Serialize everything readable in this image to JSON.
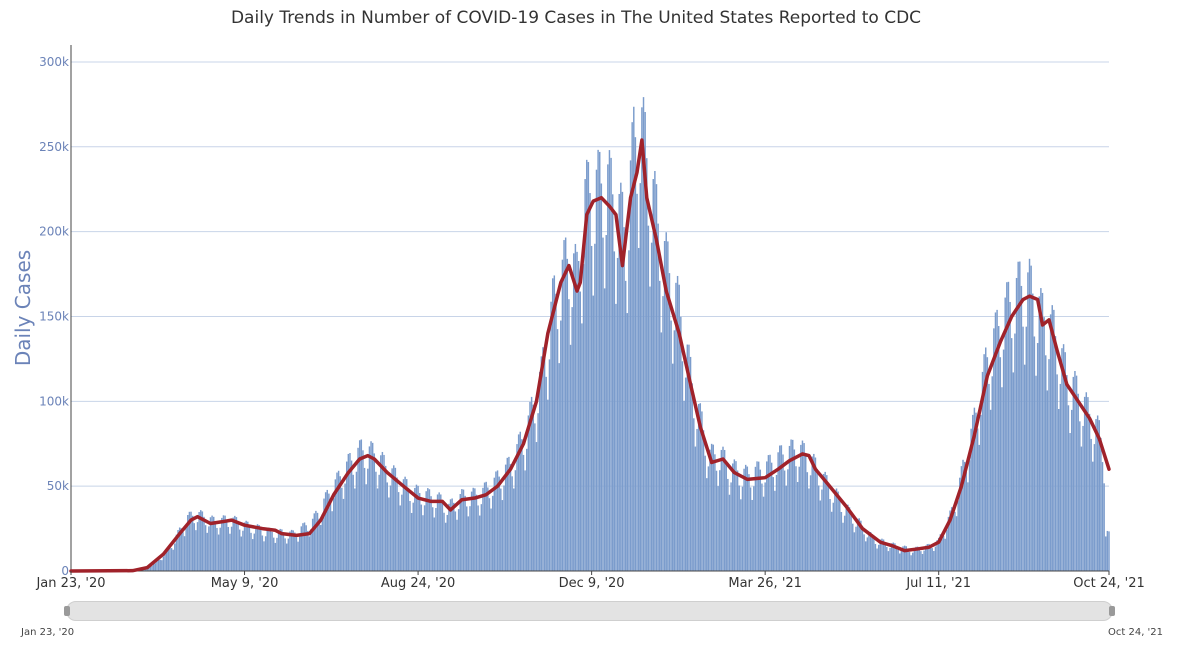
{
  "chart_data": {
    "type": "bar",
    "title": "Daily Trends in Number of COVID-19 Cases in The United States Reported to CDC",
    "ylabel": "Daily Cases",
    "xlabel": "",
    "ylim": [
      0,
      310000
    ],
    "x_start": "2020-01-23",
    "x_end": "2021-10-24",
    "y_ticks": [
      {
        "value": 0,
        "label": "0"
      },
      {
        "value": 50000,
        "label": "50k"
      },
      {
        "value": 100000,
        "label": "100k"
      },
      {
        "value": 150000,
        "label": "150k"
      },
      {
        "value": 200000,
        "label": "200k"
      },
      {
        "value": 250000,
        "label": "250k"
      },
      {
        "value": 300000,
        "label": "300k"
      }
    ],
    "x_ticks": [
      {
        "date": "2020-01-23",
        "label": "Jan 23, '20"
      },
      {
        "date": "2020-05-09",
        "label": "May 9, '20"
      },
      {
        "date": "2020-08-24",
        "label": "Aug 24, '20"
      },
      {
        "date": "2020-12-09",
        "label": "Dec 9, '20"
      },
      {
        "date": "2021-03-26",
        "label": "Mar 26, '21"
      },
      {
        "date": "2021-07-11",
        "label": "Jul 11, '21"
      },
      {
        "date": "2021-10-24",
        "label": "Oct 24, '21"
      }
    ],
    "grid": true,
    "legend": "none",
    "series": [
      {
        "type": "bar",
        "color": "#7b9ccc",
        "weekly_cycle": [
          0.76,
          0.9,
          1.1,
          1.15,
          1.14,
          1.05,
          0.9
        ],
        "keypoints": [
          [
            "2020-01-23",
            0
          ],
          [
            "2020-03-01",
            100
          ],
          [
            "2020-03-15",
            4000
          ],
          [
            "2020-03-25",
            15000
          ],
          [
            "2020-04-04",
            30000
          ],
          [
            "2020-04-10",
            32000
          ],
          [
            "2020-04-20",
            28000
          ],
          [
            "2020-05-01",
            29000
          ],
          [
            "2020-05-09",
            26000
          ],
          [
            "2020-05-25",
            22000
          ],
          [
            "2020-06-08",
            21000
          ],
          [
            "2020-06-20",
            28000
          ],
          [
            "2020-07-01",
            45000
          ],
          [
            "2020-07-12",
            60000
          ],
          [
            "2020-07-20",
            68000
          ],
          [
            "2020-07-28",
            66000
          ],
          [
            "2020-08-08",
            55000
          ],
          [
            "2020-08-20",
            45000
          ],
          [
            "2020-09-05",
            41000
          ],
          [
            "2020-09-12",
            36000
          ],
          [
            "2020-09-20",
            42000
          ],
          [
            "2020-10-01",
            43000
          ],
          [
            "2020-10-10",
            50000
          ],
          [
            "2020-10-20",
            60000
          ],
          [
            "2020-10-30",
            80000
          ],
          [
            "2020-11-08",
            110000
          ],
          [
            "2020-11-15",
            150000
          ],
          [
            "2020-11-25",
            178000
          ],
          [
            "2020-11-30",
            165000
          ],
          [
            "2020-12-05",
            210000
          ],
          [
            "2020-12-12",
            215000
          ],
          [
            "2020-12-18",
            220000
          ],
          [
            "2020-12-25",
            205000
          ],
          [
            "2020-12-30",
            190000
          ],
          [
            "2021-01-04",
            240000
          ],
          [
            "2021-01-08",
            254000
          ],
          [
            "2021-01-15",
            215000
          ],
          [
            "2021-01-22",
            180000
          ],
          [
            "2021-02-01",
            148000
          ],
          [
            "2021-02-10",
            100000
          ],
          [
            "2021-02-20",
            65000
          ],
          [
            "2021-02-26",
            66000
          ],
          [
            "2021-03-05",
            58000
          ],
          [
            "2021-03-15",
            54000
          ],
          [
            "2021-03-26",
            58000
          ],
          [
            "2021-04-05",
            65000
          ],
          [
            "2021-04-15",
            69000
          ],
          [
            "2021-04-22",
            64000
          ],
          [
            "2021-05-01",
            52000
          ],
          [
            "2021-05-15",
            35000
          ],
          [
            "2021-06-01",
            18000
          ],
          [
            "2021-06-15",
            14000
          ],
          [
            "2021-06-25",
            12000
          ],
          [
            "2021-07-05",
            14000
          ],
          [
            "2021-07-11",
            17000
          ],
          [
            "2021-07-20",
            35000
          ],
          [
            "2021-08-01",
            80000
          ],
          [
            "2021-08-10",
            120000
          ],
          [
            "2021-08-20",
            145000
          ],
          [
            "2021-08-30",
            160000
          ],
          [
            "2021-09-05",
            160000
          ],
          [
            "2021-09-12",
            145000
          ],
          [
            "2021-09-20",
            135000
          ],
          [
            "2021-09-28",
            110000
          ],
          [
            "2021-10-08",
            95000
          ],
          [
            "2021-10-18",
            78000
          ],
          [
            "2021-10-24",
            58000
          ]
        ]
      },
      {
        "type": "line",
        "color": "#a0222a",
        "points": [
          [
            "2020-01-23",
            0
          ],
          [
            "2020-03-01",
            200
          ],
          [
            "2020-03-10",
            2000
          ],
          [
            "2020-03-20",
            10000
          ],
          [
            "2020-03-30",
            22000
          ],
          [
            "2020-04-06",
            30000
          ],
          [
            "2020-04-10",
            32000
          ],
          [
            "2020-04-18",
            28000
          ],
          [
            "2020-04-25",
            29000
          ],
          [
            "2020-05-01",
            30000
          ],
          [
            "2020-05-09",
            27000
          ],
          [
            "2020-05-20",
            25000
          ],
          [
            "2020-05-28",
            24000
          ],
          [
            "2020-06-01",
            22000
          ],
          [
            "2020-06-10",
            21000
          ],
          [
            "2020-06-18",
            22000
          ],
          [
            "2020-06-25",
            30000
          ],
          [
            "2020-07-03",
            45000
          ],
          [
            "2020-07-12",
            58000
          ],
          [
            "2020-07-19",
            66000
          ],
          [
            "2020-07-24",
            68000
          ],
          [
            "2020-07-28",
            66000
          ],
          [
            "2020-08-05",
            58000
          ],
          [
            "2020-08-15",
            50000
          ],
          [
            "2020-08-24",
            43000
          ],
          [
            "2020-09-01",
            41000
          ],
          [
            "2020-09-08",
            41000
          ],
          [
            "2020-09-13",
            36000
          ],
          [
            "2020-09-20",
            42000
          ],
          [
            "2020-09-28",
            43000
          ],
          [
            "2020-10-05",
            45000
          ],
          [
            "2020-10-12",
            50000
          ],
          [
            "2020-10-20",
            60000
          ],
          [
            "2020-10-28",
            75000
          ],
          [
            "2020-11-05",
            100000
          ],
          [
            "2020-11-12",
            140000
          ],
          [
            "2020-11-20",
            170000
          ],
          [
            "2020-11-25",
            180000
          ],
          [
            "2020-11-30",
            165000
          ],
          [
            "2020-12-02",
            170000
          ],
          [
            "2020-12-06",
            210000
          ],
          [
            "2020-12-10",
            218000
          ],
          [
            "2020-12-15",
            220000
          ],
          [
            "2020-12-20",
            215000
          ],
          [
            "2020-12-24",
            210000
          ],
          [
            "2020-12-28",
            180000
          ],
          [
            "2021-01-02",
            220000
          ],
          [
            "2021-01-06",
            235000
          ],
          [
            "2021-01-09",
            254000
          ],
          [
            "2021-01-12",
            220000
          ],
          [
            "2021-01-18",
            195000
          ],
          [
            "2021-01-24",
            165000
          ],
          [
            "2021-02-01",
            140000
          ],
          [
            "2021-02-08",
            110000
          ],
          [
            "2021-02-14",
            85000
          ],
          [
            "2021-02-21",
            64000
          ],
          [
            "2021-02-28",
            66000
          ],
          [
            "2021-03-07",
            58000
          ],
          [
            "2021-03-15",
            54000
          ],
          [
            "2021-03-26",
            55000
          ],
          [
            "2021-04-03",
            60000
          ],
          [
            "2021-04-10",
            65000
          ],
          [
            "2021-04-18",
            69000
          ],
          [
            "2021-04-22",
            68000
          ],
          [
            "2021-04-26",
            60000
          ],
          [
            "2021-05-03",
            52000
          ],
          [
            "2021-05-15",
            38000
          ],
          [
            "2021-05-25",
            25000
          ],
          [
            "2021-06-05",
            17000
          ],
          [
            "2021-06-12",
            15000
          ],
          [
            "2021-06-20",
            12000
          ],
          [
            "2021-06-28",
            13000
          ],
          [
            "2021-07-05",
            14000
          ],
          [
            "2021-07-11",
            17000
          ],
          [
            "2021-07-18",
            30000
          ],
          [
            "2021-07-25",
            50000
          ],
          [
            "2021-08-02",
            80000
          ],
          [
            "2021-08-10",
            115000
          ],
          [
            "2021-08-18",
            135000
          ],
          [
            "2021-08-25",
            150000
          ],
          [
            "2021-09-01",
            160000
          ],
          [
            "2021-09-05",
            162000
          ],
          [
            "2021-09-10",
            160000
          ],
          [
            "2021-09-13",
            145000
          ],
          [
            "2021-09-17",
            148000
          ],
          [
            "2021-09-22",
            130000
          ],
          [
            "2021-09-28",
            110000
          ],
          [
            "2021-10-05",
            100000
          ],
          [
            "2021-10-12",
            90000
          ],
          [
            "2021-10-18",
            78000
          ],
          [
            "2021-10-24",
            60000
          ]
        ]
      }
    ]
  },
  "range_slider": {
    "start_label": "Jan 23, '20",
    "end_label": "Oct 24, '21"
  },
  "colors": {
    "bars": "#7b9ccc",
    "line": "#a0222a",
    "grid": "#c8d4e8",
    "axis_text": "#6b83b8"
  }
}
